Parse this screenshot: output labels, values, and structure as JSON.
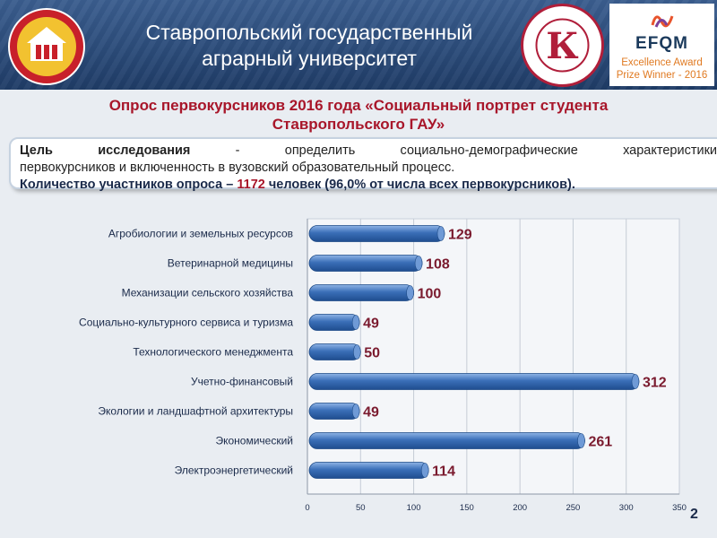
{
  "header": {
    "title_line1": "Ставропольский государственный",
    "title_line2": "аграрный университет",
    "efqm_logo": "EFQM",
    "award_line1": "Excellence Award",
    "award_line2": "Prize Winner - 2016",
    "colors": {
      "band": "#2a4a78",
      "award": "#e07a22"
    }
  },
  "survey_title_line1": "Опрос первокурсников 2016 года «Социальный портрет студента",
  "survey_title_line2": "Ставропольского ГАУ»",
  "goal": {
    "label": "Цель исследования",
    "text1": " - определить социально-демографические характеристики",
    "text2": "первокурсников и включенность в вузовский образовательный процесс.",
    "count_prefix": "Количество участников опроса – ",
    "count_value": "1172",
    "count_suffix": " человек (96,0% от числа всех первокурсников)."
  },
  "page_number": "2",
  "chart_data": {
    "type": "bar",
    "orientation": "horizontal",
    "categories": [
      "Агробиологии и земельных ресурсов",
      "Ветеринарной медицины",
      "Механизации сельского хозяйства",
      "Социально-культурного сервиса и туризма",
      "Технологического менеджмента",
      "Учетно-финансовый",
      "Экологии и ландшафтной архитектуры",
      "Экономический",
      "Электроэнергетический"
    ],
    "values": [
      129,
      108,
      100,
      49,
      50,
      312,
      49,
      261,
      114
    ],
    "xlim": [
      0,
      350
    ],
    "x_ticks": [
      0,
      50,
      100,
      150,
      200,
      250,
      300,
      350
    ],
    "grid": "vertical",
    "bar_color": "#3a6fb8",
    "label_color": "#7a1a2e"
  }
}
